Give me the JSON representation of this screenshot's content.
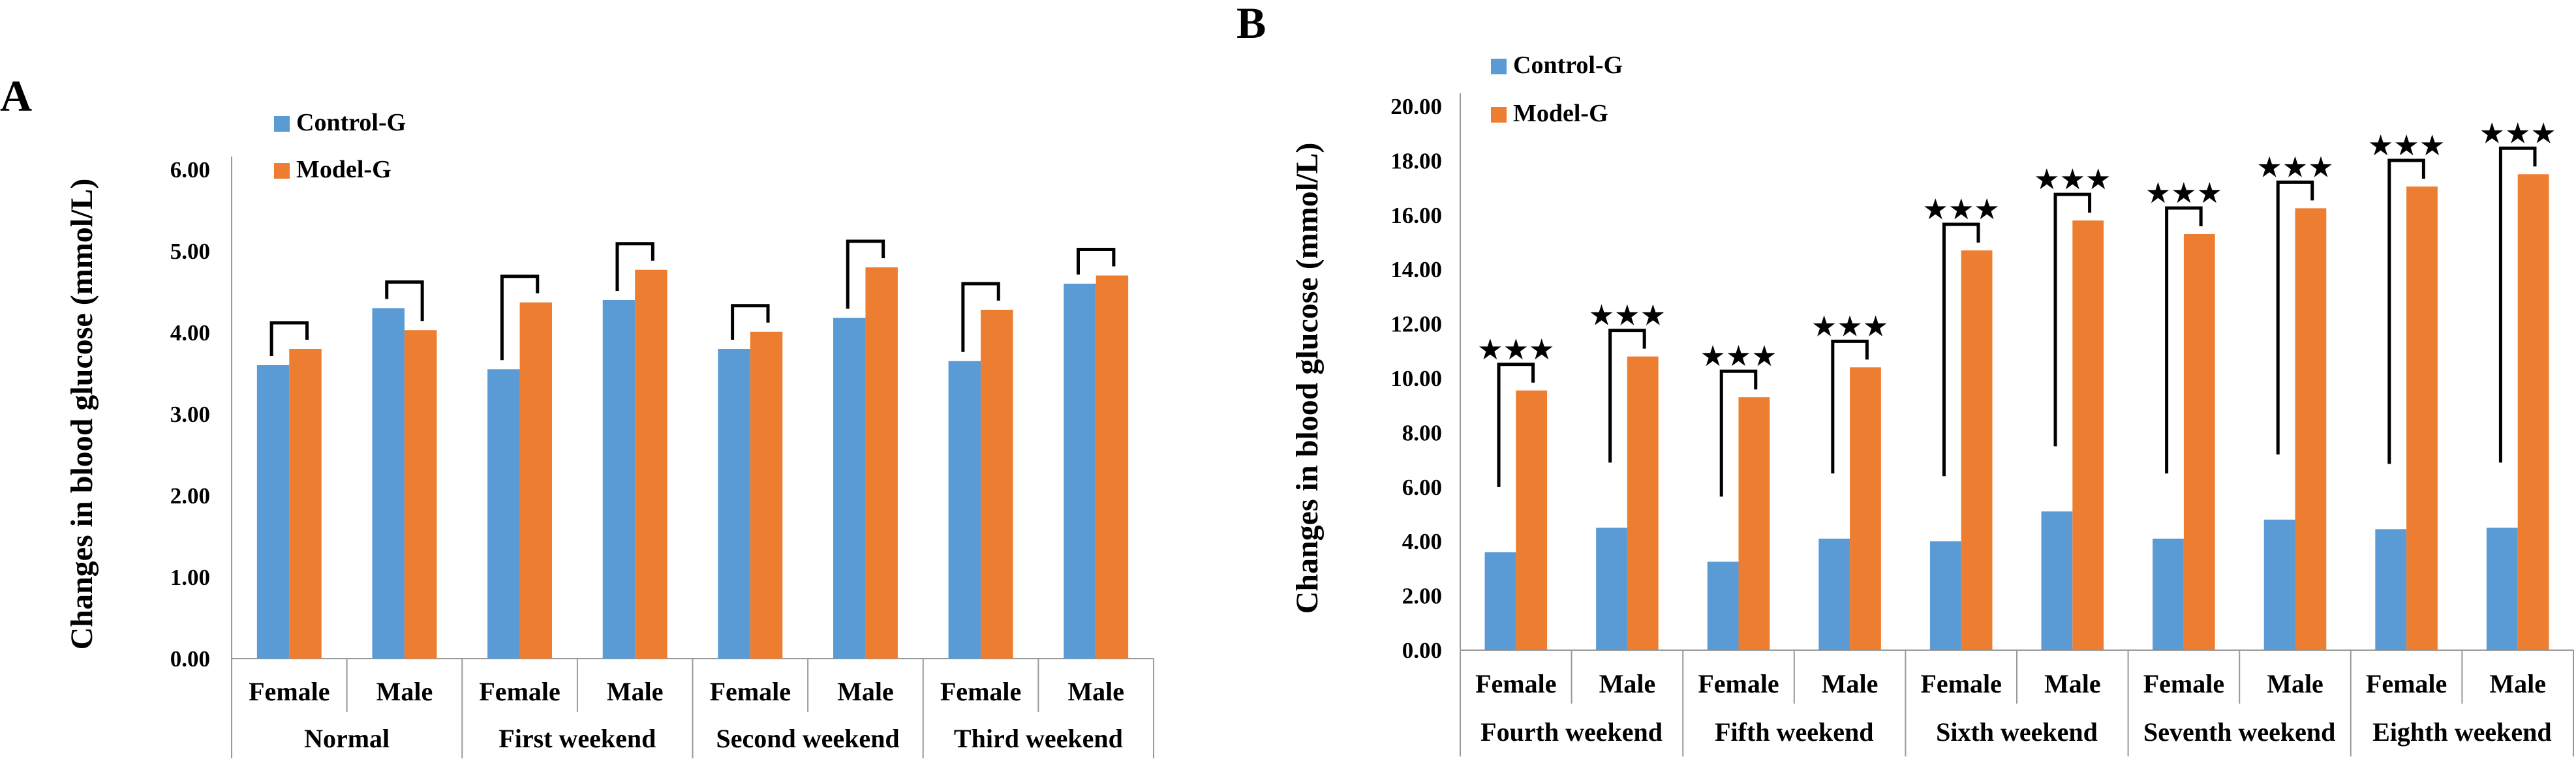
{
  "colors": {
    "control": "#5B9BD5",
    "model": "#ED7D31"
  },
  "chart_data": [
    {
      "panel_label": "A",
      "type": "bar",
      "title": "",
      "ylabel": "Changes in blood glucose (mmol/L)",
      "xlabel": "",
      "ylim": [
        0,
        6
      ],
      "yticks": [
        "0.00",
        "1.00",
        "2.00",
        "3.00",
        "4.00",
        "5.00",
        "6.00"
      ],
      "legend": [
        "Control-G",
        "Model-G"
      ],
      "legend_position": "top-left",
      "groups": [
        "Normal",
        "First weekend",
        "Second weekend",
        "Third weekend"
      ],
      "categories": [
        "Female",
        "Male",
        "Female",
        "Male",
        "Female",
        "Male",
        "Female",
        "Male"
      ],
      "series": [
        {
          "name": "Control-G",
          "values": [
            3.6,
            4.3,
            3.55,
            4.4,
            3.8,
            4.18,
            3.65,
            4.6
          ]
        },
        {
          "name": "Model-G",
          "values": [
            3.8,
            4.03,
            4.37,
            4.77,
            4.01,
            4.8,
            4.28,
            4.7
          ]
        }
      ],
      "significance": [
        "",
        "",
        "",
        "",
        "",
        "",
        "",
        ""
      ]
    },
    {
      "panel_label": "B",
      "type": "bar",
      "title": "",
      "ylabel": "Changes in blood glucose (mmol/L)",
      "xlabel": "",
      "ylim": [
        0,
        20
      ],
      "yticks": [
        "0.00",
        "2.00",
        "4.00",
        "6.00",
        "8.00",
        "10.00",
        "12.00",
        "14.00",
        "16.00",
        "18.00",
        "20.00"
      ],
      "legend": [
        "Control-G",
        "Model-G"
      ],
      "legend_position": "top-left",
      "groups": [
        "Fourth weekend",
        "Fifth weekend",
        "Sixth weekend",
        "Seventh weekend",
        "Eighth weekend"
      ],
      "categories": [
        "Female",
        "Male",
        "Female",
        "Male",
        "Female",
        "Male",
        "Female",
        "Male",
        "Female",
        "Male"
      ],
      "series": [
        {
          "name": "Control-G",
          "values": [
            3.6,
            4.5,
            3.25,
            4.1,
            4.0,
            5.1,
            4.1,
            4.8,
            4.45,
            4.5
          ]
        },
        {
          "name": "Model-G",
          "values": [
            9.55,
            10.8,
            9.3,
            10.4,
            14.7,
            15.8,
            15.3,
            16.25,
            17.05,
            17.5
          ]
        }
      ],
      "significance": [
        "★★★",
        "★★★",
        "★★★",
        "★★★",
        "★★★",
        "★★★",
        "★★★",
        "★★★",
        "★★★",
        "★★★"
      ]
    }
  ]
}
